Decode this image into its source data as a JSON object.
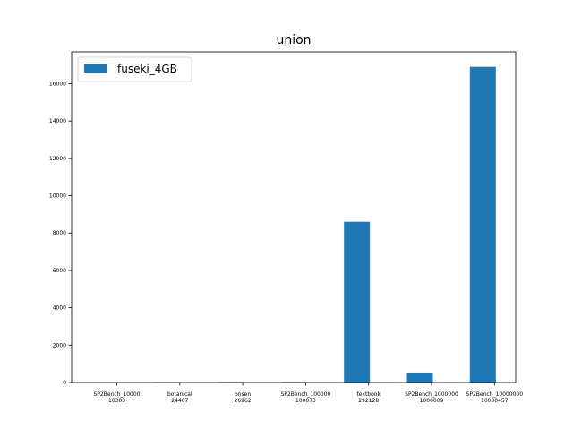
{
  "chart_data": {
    "type": "bar",
    "title": "union",
    "xlabel": "",
    "ylabel": "",
    "categories": [
      [
        "SP2Bench_10000",
        "10303"
      ],
      [
        "botanical",
        "24467"
      ],
      [
        "onsen",
        "26962"
      ],
      [
        "SP2Bench_100000",
        "100073"
      ],
      [
        "textbook",
        "292128"
      ],
      [
        "SP2Bench_1000000",
        "1000009"
      ],
      [
        "SP2Bench_10000000",
        "10000457"
      ]
    ],
    "series": [
      {
        "name": "fuseki_4GB",
        "color": "#1f77b4",
        "values": [
          8,
          25,
          30,
          30,
          8600,
          530,
          16900
        ]
      }
    ],
    "ylim": [
      0,
      17700
    ],
    "yticks": [
      0,
      2000,
      4000,
      6000,
      8000,
      10000,
      12000,
      14000,
      16000
    ],
    "grid": false,
    "legend_position": "top-left"
  }
}
